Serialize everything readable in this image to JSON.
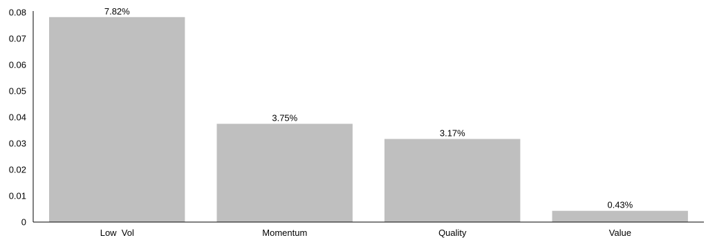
{
  "chart_data": {
    "type": "bar",
    "title": "",
    "xlabel": "",
    "ylabel": "",
    "categories": [
      "Low  Vol",
      "Momentum",
      "Quality",
      "Value"
    ],
    "values": [
      0.0782,
      0.0375,
      0.0317,
      0.0043
    ],
    "data_labels": [
      "7.82%",
      "3.75%",
      "3.17%",
      "0.43%"
    ],
    "ylim": [
      0,
      0.08
    ],
    "yticks": [
      0,
      0.01,
      0.02,
      0.03,
      0.04,
      0.05,
      0.06,
      0.07,
      0.08
    ],
    "ytick_labels": [
      "0",
      "0.01",
      "0.02",
      "0.03",
      "0.04",
      "0.05",
      "0.06",
      "0.07",
      "0.08"
    ],
    "bar_color": "#bfbfbf",
    "axis_color": "#000000",
    "grid": false,
    "legend": "none"
  }
}
